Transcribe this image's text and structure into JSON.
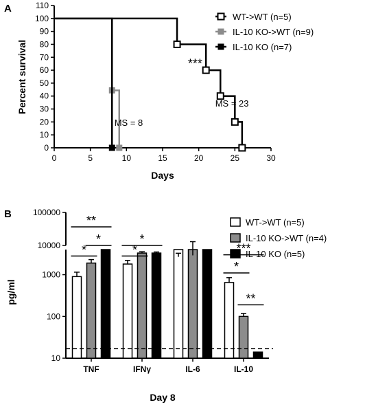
{
  "chart_data": [
    {
      "panel": "A",
      "type": "line",
      "step": true,
      "xlabel": "Days",
      "ylabel": "Percent survival",
      "xlim": [
        0,
        30
      ],
      "ylim": [
        0,
        110
      ],
      "x_ticks": [
        0,
        5,
        10,
        15,
        20,
        25,
        30
      ],
      "y_ticks": [
        0,
        10,
        20,
        30,
        40,
        50,
        60,
        70,
        80,
        90,
        100,
        110
      ],
      "legend_position": "top-right",
      "series": [
        {
          "name": "WT->WT (n=5)",
          "color": "#000000",
          "marker": "open-square",
          "x": [
            0,
            17,
            21,
            23,
            25,
            26
          ],
          "y": [
            100,
            80,
            60,
            40,
            20,
            0
          ]
        },
        {
          "name": "IL-10 KO->WT (n=9)",
          "color": "#8c8c8c",
          "marker": "filled-square",
          "x": [
            0,
            8,
            9
          ],
          "y": [
            100,
            44.4,
            0
          ]
        },
        {
          "name": "IL-10 KO (n=7)",
          "color": "#000000",
          "marker": "filled-square",
          "x": [
            0,
            8
          ],
          "y": [
            100,
            0
          ]
        }
      ],
      "annotations": [
        {
          "text": "***",
          "x": 19.5,
          "y": 62
        },
        {
          "text": "MS = 8",
          "x": 10.3,
          "y": 17
        },
        {
          "text": "MS = 23",
          "x": 24.6,
          "y": 32
        }
      ]
    },
    {
      "panel": "B",
      "type": "bar",
      "y_scale": "log",
      "axis_break": true,
      "xlabel": "Day 8",
      "ylabel": "pg/ml",
      "categories": [
        "TNF",
        "IFNγ",
        "IL-6",
        "IL-10"
      ],
      "y_ticks_lower": [
        "10",
        "100",
        "1000"
      ],
      "y_ticks_upper": [
        "10000",
        "100000"
      ],
      "ylim_lower": [
        10,
        4000
      ],
      "ylim_upper": [
        10000,
        100000
      ],
      "legend_position": "top-right",
      "series": [
        {
          "name": "WT->WT (n=5)",
          "color": "#ffffff",
          "values": [
            900,
            1800,
            4500,
            650
          ],
          "errors": [
            250,
            400,
            1300,
            200
          ]
        },
        {
          "name": "IL-10 KO->WT (n=4)",
          "color": "#8c8c8c",
          "values": [
            1900,
            3300,
            5000,
            100
          ],
          "errors": [
            400,
            250,
            8000,
            18
          ]
        },
        {
          "name": "IL-10 KO (n=5)",
          "color": "#000000",
          "values": [
            4000,
            3300,
            4600,
            14
          ],
          "errors": [
            700,
            200,
            900,
            0
          ]
        }
      ],
      "detection_limit": 17,
      "significance": [
        {
          "label": "**",
          "category": 0,
          "from": 0,
          "to": 2,
          "level": "upper-high"
        },
        {
          "label": "*",
          "category": 0,
          "from": 1,
          "to": 2,
          "level": "upper-low"
        },
        {
          "label": "*",
          "category": 0,
          "from": 0,
          "to": 1,
          "level": 2800
        },
        {
          "label": "*",
          "category": 1,
          "from": 0,
          "to": 2,
          "level": "upper-low"
        },
        {
          "label": "*",
          "category": 1,
          "from": 0,
          "to": 1,
          "level": 2800
        },
        {
          "label": "***",
          "category": 3,
          "from": 0,
          "to": 2,
          "level": 3000
        },
        {
          "label": "*",
          "category": 3,
          "from": 0,
          "to": 1,
          "level": 1100
        },
        {
          "label": "**",
          "category": 3,
          "from": 1,
          "to": 2,
          "level": 190
        }
      ]
    }
  ],
  "panels": {
    "a_letter": "A",
    "b_letter": "B"
  }
}
